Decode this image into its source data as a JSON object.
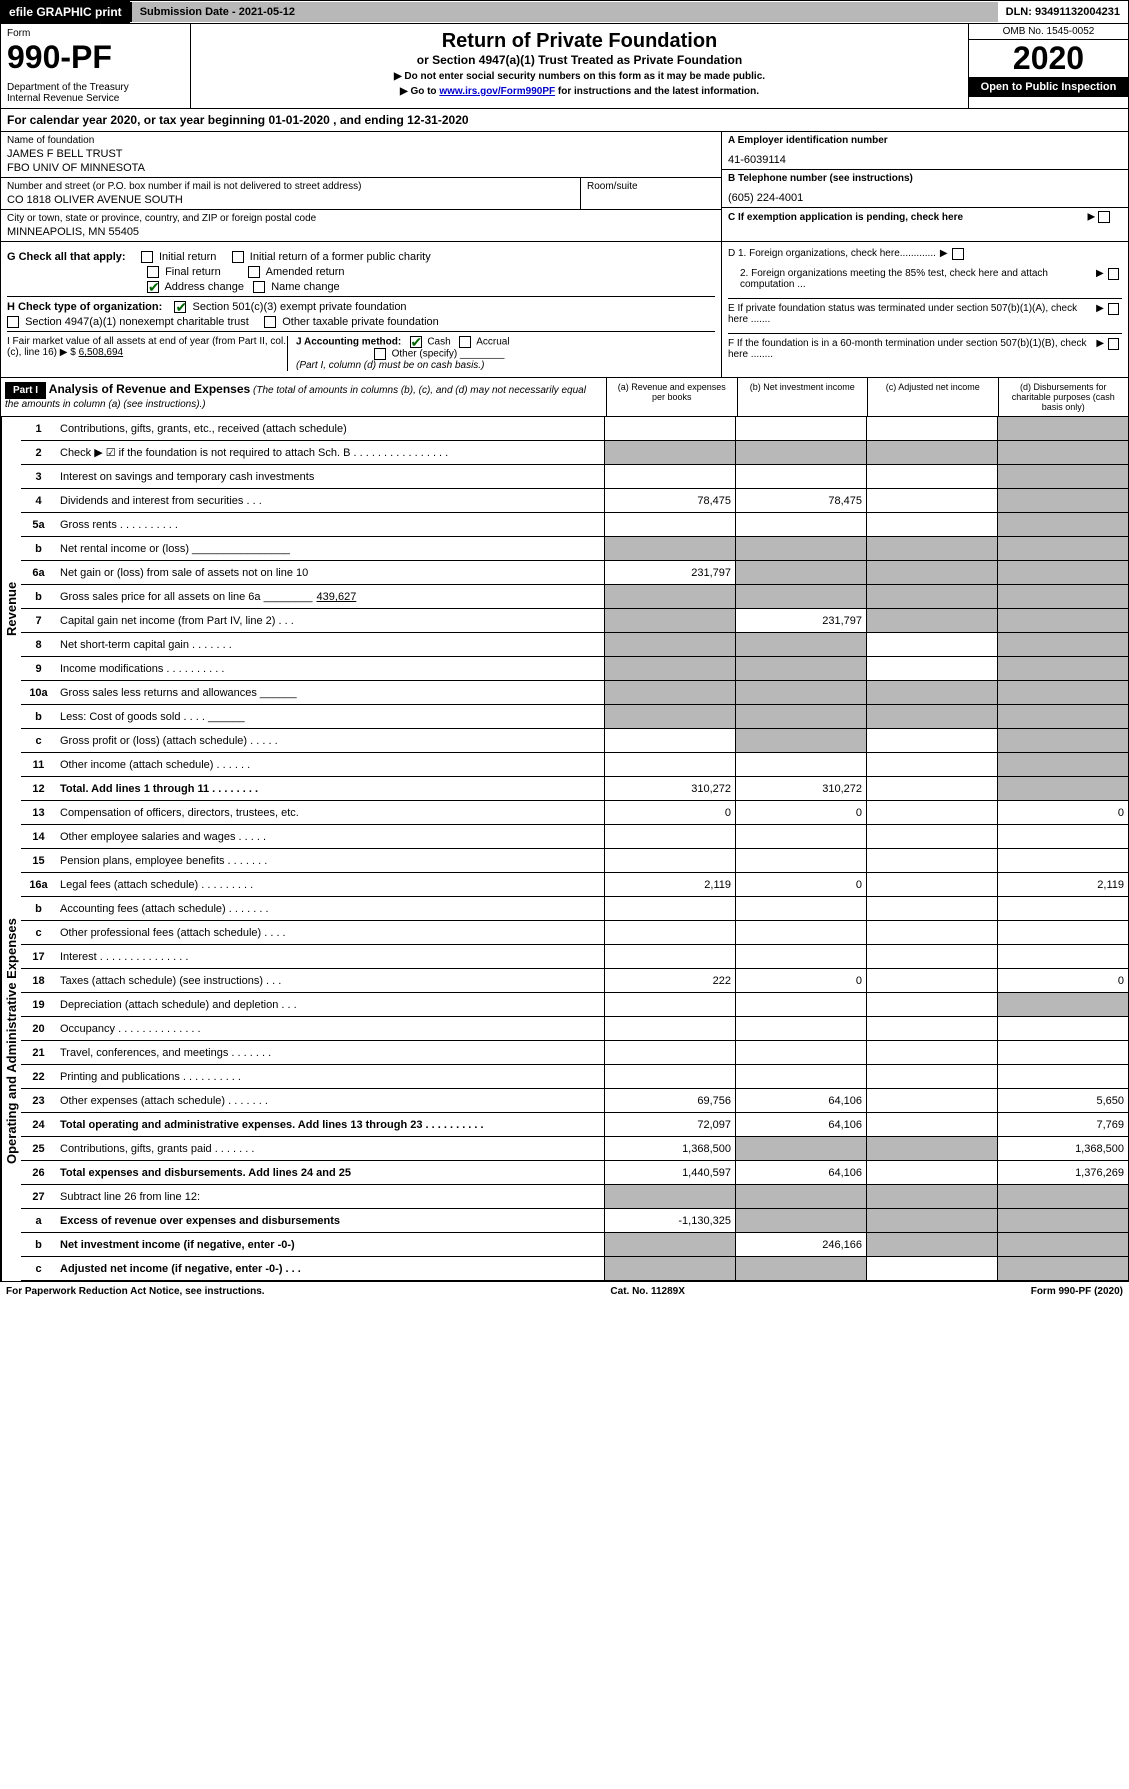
{
  "top": {
    "efile": "efile GRAPHIC print",
    "sub_date": "Submission Date - 2021-05-12",
    "dln": "DLN: 93491132004231"
  },
  "header": {
    "form_label": "Form",
    "form_num": "990-PF",
    "dept": "Department of the Treasury\nInternal Revenue Service",
    "title": "Return of Private Foundation",
    "subtitle": "or Section 4947(a)(1) Trust Treated as Private Foundation",
    "instr1": "▶ Do not enter social security numbers on this form as it may be made public.",
    "instr2_pre": "▶ Go to ",
    "instr2_link": "www.irs.gov/Form990PF",
    "instr2_post": " for instructions and the latest information.",
    "omb": "OMB No. 1545-0052",
    "year": "2020",
    "open": "Open to Public Inspection"
  },
  "cal": "For calendar year 2020, or tax year beginning 01-01-2020                                    , and ending 12-31-2020",
  "info": {
    "name_lbl": "Name of foundation",
    "name1": "JAMES F BELL TRUST",
    "name2": "FBO UNIV OF MINNESOTA",
    "addr_lbl": "Number and street (or P.O. box number if mail is not delivered to street address)",
    "addr": "CO 1818 OLIVER AVENUE SOUTH",
    "room_lbl": "Room/suite",
    "city_lbl": "City or town, state or province, country, and ZIP or foreign postal code",
    "city": "MINNEAPOLIS, MN  55405",
    "a_lbl": "A Employer identification number",
    "a_val": "41-6039114",
    "b_lbl": "B Telephone number (see instructions)",
    "b_val": "(605) 224-4001",
    "c_lbl": "C If exemption application is pending, check here"
  },
  "g": {
    "label": "G Check all that apply:",
    "opts": [
      "Initial return",
      "Initial return of a former public charity",
      "Final return",
      "Amended return",
      "Address change",
      "Name change"
    ]
  },
  "h": {
    "label": "H Check type of organization:",
    "o1": "Section 501(c)(3) exempt private foundation",
    "o2": "Section 4947(a)(1) nonexempt charitable trust",
    "o3": "Other taxable private foundation"
  },
  "i": {
    "label": "I Fair market value of all assets at end of year (from Part II, col. (c), line 16) ▶ $",
    "val": "6,508,694"
  },
  "j": {
    "label": "J Accounting method:",
    "o1": "Cash",
    "o2": "Accrual",
    "o3": "Other (specify)",
    "note": "(Part I, column (d) must be on cash basis.)"
  },
  "d": {
    "d1": "D 1. Foreign organizations, check here.............",
    "d2": "2. Foreign organizations meeting the 85% test, check here and attach computation ...",
    "e": "E  If private foundation status was terminated under section 507(b)(1)(A), check here .......",
    "f": "F  If the foundation is in a 60-month termination under section 507(b)(1)(B), check here ........"
  },
  "part1": {
    "hdr": "Part I",
    "title": "Analysis of Revenue and Expenses",
    "sub": "(The total of amounts in columns (b), (c), and (d) may not necessarily equal the amounts in column (a) (see instructions).)",
    "col_a": "(a)    Revenue and expenses per books",
    "col_b": "(b)    Net investment income",
    "col_c": "(c)   Adjusted net income",
    "col_d": "(d)   Disbursements for charitable purposes (cash basis only)"
  },
  "rev_label": "Revenue",
  "exp_label": "Operating and Administrative Expenses",
  "rows": {
    "r1": {
      "n": "1",
      "d": "Contributions, gifts, grants, etc., received (attach schedule)"
    },
    "r2": {
      "n": "2",
      "d": "Check ▶ ☑ if the foundation is not required to attach Sch. B  .  .  .  .  .  .  .  .  .  .  .  .  .  .  .  ."
    },
    "r3": {
      "n": "3",
      "d": "Interest on savings and temporary cash investments"
    },
    "r4": {
      "n": "4",
      "d": "Dividends and interest from securities     .    .    .",
      "a": "78,475",
      "b": "78,475"
    },
    "r5a": {
      "n": "5a",
      "d": "Gross rents            .    .    .    .    .    .    .    .    .    ."
    },
    "r5b": {
      "n": "b",
      "d": "Net rental income or (loss)  ________________"
    },
    "r6a": {
      "n": "6a",
      "d": "Net gain or (loss) from sale of assets not on line 10",
      "a": "231,797"
    },
    "r6b": {
      "n": "b",
      "d": "Gross sales price for all assets on line 6a ________",
      "v": "439,627"
    },
    "r7": {
      "n": "7",
      "d": "Capital gain net income (from Part IV, line 2)     .    .    .",
      "b": "231,797"
    },
    "r8": {
      "n": "8",
      "d": "Net short-term capital gain    .    .    .    .    .    .    ."
    },
    "r9": {
      "n": "9",
      "d": "Income modifications    .    .    .    .    .    .    .    .    .    ."
    },
    "r10a": {
      "n": "10a",
      "d": "Gross sales less returns and allowances  ______"
    },
    "r10b": {
      "n": "b",
      "d": "Less: Cost of goods sold        .    .    .    .  ______"
    },
    "r10c": {
      "n": "c",
      "d": "Gross profit or (loss) (attach schedule)      .    .    .    .    ."
    },
    "r11": {
      "n": "11",
      "d": "Other income (attach schedule)      .    .    .    .    .    ."
    },
    "r12": {
      "n": "12",
      "d": "Total. Add lines 1 through 11     .    .    .    .    .    .    .    .",
      "a": "310,272",
      "b": "310,272"
    },
    "r13": {
      "n": "13",
      "d": "Compensation of officers, directors, trustees, etc.",
      "a": "0",
      "b": "0",
      "dd": "0"
    },
    "r14": {
      "n": "14",
      "d": "Other employee salaries and wages      .    .    .    .    ."
    },
    "r15": {
      "n": "15",
      "d": "Pension plans, employee benefits    .    .    .    .    .    .    ."
    },
    "r16a": {
      "n": "16a",
      "d": "Legal fees (attach schedule)    .    .    .    .    .    .    .    .    .",
      "a": "2,119",
      "b": "0",
      "dd": "2,119"
    },
    "r16b": {
      "n": "b",
      "d": "Accounting fees (attach schedule)    .    .    .    .    .    .    ."
    },
    "r16c": {
      "n": "c",
      "d": "Other professional fees (attach schedule)       .    .    .    ."
    },
    "r17": {
      "n": "17",
      "d": "Interest    .    .    .    .    .    .    .    .    .    .    .    .    .    .    ."
    },
    "r18": {
      "n": "18",
      "d": "Taxes (attach schedule) (see instructions)       .    .    .",
      "a": "222",
      "b": "0",
      "dd": "0"
    },
    "r19": {
      "n": "19",
      "d": "Depreciation (attach schedule) and depletion      .    .    ."
    },
    "r20": {
      "n": "20",
      "d": "Occupancy    .    .    .    .    .    .    .    .    .    .    .    .    .    ."
    },
    "r21": {
      "n": "21",
      "d": "Travel, conferences, and meetings    .    .    .    .    .    .    ."
    },
    "r22": {
      "n": "22",
      "d": "Printing and publications    .    .    .    .    .    .    .    .    .    ."
    },
    "r23": {
      "n": "23",
      "d": "Other expenses (attach schedule)    .    .    .    .    .    .    .",
      "a": "69,756",
      "b": "64,106",
      "dd": "5,650"
    },
    "r24": {
      "n": "24",
      "d": "Total operating and administrative expenses. Add lines 13 through 23    .    .    .    .    .    .    .    .    .    .",
      "a": "72,097",
      "b": "64,106",
      "dd": "7,769"
    },
    "r25": {
      "n": "25",
      "d": "Contributions, gifts, grants paid       .    .    .    .    .    .    .",
      "a": "1,368,500",
      "dd": "1,368,500"
    },
    "r26": {
      "n": "26",
      "d": "Total expenses and disbursements. Add lines 24 and 25",
      "a": "1,440,597",
      "b": "64,106",
      "dd": "1,376,269"
    },
    "r27": {
      "n": "27",
      "d": "Subtract line 26 from line 12:"
    },
    "r27a": {
      "n": "a",
      "d": "Excess of revenue over expenses and disbursements",
      "a": "-1,130,325"
    },
    "r27b": {
      "n": "b",
      "d": "Net investment income (if negative, enter -0-)",
      "b": "246,166"
    },
    "r27c": {
      "n": "c",
      "d": "Adjusted net income (if negative, enter -0-)    .    .    ."
    }
  },
  "footer": {
    "left": "For Paperwork Reduction Act Notice, see instructions.",
    "mid": "Cat. No. 11289X",
    "right": "Form 990-PF (2020)"
  }
}
